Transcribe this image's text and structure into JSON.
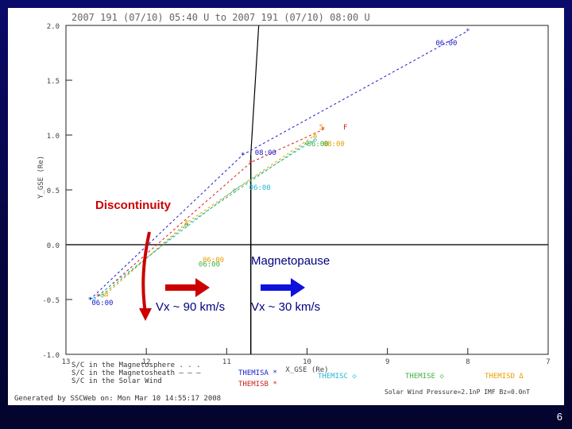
{
  "page_number": "6",
  "annotations": {
    "discontinuity": "Discontinuity",
    "magnetopause": "Magnetopause",
    "vx_left": "Vx ~ 90 km/s",
    "vx_right": "Vx ~ 30 km/s"
  },
  "colors": {
    "magnetosphere": "#000000",
    "slide_background": "#060640",
    "accent_red": "#cc0000",
    "accent_blue": "#1010dd",
    "themis_a": "#1a1acc",
    "themis_b": "#cc2020",
    "themis_c": "#20b8d0",
    "themis_d": "#e6a000",
    "themis_e": "#40b040",
    "orbit_blue": "#1a1acc",
    "orbit_cyan": "#20a8d0",
    "orbit_green": "#40b040"
  },
  "chart_data": {
    "type": "line",
    "title": "2007 191 (07/10) 05:40 U  to 2007 191 (07/10) 08:00 U",
    "xlabel": "X_GSE (Re)",
    "ylabel": "Y_GSE (Re)",
    "xlim": [
      13,
      7
    ],
    "x_reversed": true,
    "ylim_top": [
      0.0,
      2.0
    ],
    "ylim_bottom": [
      -1.0,
      0.0
    ],
    "x_ticks": [
      "13",
      "12",
      "11",
      "10",
      "9",
      "8",
      "7"
    ],
    "y_ticks_top": [
      "2.0",
      "1.5",
      "1.0",
      "0.5",
      "0.0"
    ],
    "y_ticks_bottom": [
      "0.0",
      "-0.5",
      "-1.0"
    ],
    "magnetopause_x": 10.7,
    "series": [
      {
        "name": "THEMISA",
        "symbol": "*",
        "color_key": "themis_a",
        "points": [
          [
            12.7,
            -0.5
          ],
          [
            10.8,
            0.82
          ],
          [
            8.0,
            1.95
          ]
        ]
      },
      {
        "name": "THEMISB",
        "symbol": "*",
        "color_key": "themis_b",
        "points": [
          [
            12.6,
            -0.47
          ],
          [
            10.7,
            0.75
          ],
          [
            9.8,
            1.05
          ]
        ]
      },
      {
        "name": "THEMISC",
        "symbol": "◇",
        "color_key": "themis_c",
        "points": [
          [
            12.65,
            -0.49
          ],
          [
            10.9,
            0.5
          ],
          [
            9.9,
            0.96
          ]
        ]
      },
      {
        "name": "THEMISD",
        "symbol": "Δ",
        "color_key": "themis_d",
        "points": [
          [
            12.5,
            -0.45
          ],
          [
            11.5,
            0.2
          ],
          [
            9.9,
            1.0
          ]
        ]
      },
      {
        "name": "THEMISE",
        "symbol": "◇",
        "color_key": "themis_e",
        "points": [
          [
            12.55,
            -0.46
          ],
          [
            11.5,
            0.18
          ],
          [
            10.0,
            0.93
          ]
        ]
      }
    ],
    "labels": [
      {
        "text": "06:00",
        "x": 8.4,
        "y": 1.82,
        "color_key": "themis_a"
      },
      {
        "text": "08:00",
        "x": 10.65,
        "y": 0.82,
        "color_key": "themis_a"
      },
      {
        "text": "06:00",
        "x": 10.72,
        "y": 0.5,
        "color_key": "themis_c"
      },
      {
        "text": "08:00",
        "x": 9.8,
        "y": 0.9,
        "color_key": "themis_d"
      },
      {
        "text": "06:00",
        "x": 10.0,
        "y": 0.9,
        "color_key": "themis_e"
      },
      {
        "text": "06:00",
        "x": 11.3,
        "y": -0.16,
        "color_key": "themis_d"
      },
      {
        "text": "06:00",
        "x": 11.35,
        "y": -0.2,
        "color_key": "themis_e"
      },
      {
        "text": "06:00",
        "x": 12.68,
        "y": -0.55,
        "color_key": "themis_a"
      },
      {
        "text": "5",
        "x": 9.85,
        "y": 1.05,
        "color_key": "themis_d"
      },
      {
        "text": "F",
        "x": 9.55,
        "y": 1.05,
        "color_key": "themis_b"
      }
    ],
    "legend": {
      "placement": "bottom",
      "lines": [
        {
          "text": "S/C in the Magnetosphere . . .",
          "color_key": "magnetosphere"
        },
        {
          "text": "S/C in the Magnetosheath — — —",
          "color_key": "magnetosphere"
        },
        {
          "text": "S/C in the Solar Wind",
          "color_key": "magnetosphere"
        }
      ],
      "entries": [
        {
          "text": "THEMISA *",
          "color_key": "themis_a"
        },
        {
          "text": "THEMISB *",
          "color_key": "themis_b"
        },
        {
          "text": "THEMISC ◇",
          "color_key": "themis_c"
        },
        {
          "text": "THEMISE ◇",
          "color_key": "themis_e"
        },
        {
          "text": "THEMISD Δ",
          "color_key": "themis_d"
        }
      ]
    },
    "footer_left": "Generated by SSCWeb on: Mon Mar 10 14:55:17 2008",
    "footer_right": "Solar Wind Pressure=2.1nP  IMF Bz=0.0nT"
  }
}
